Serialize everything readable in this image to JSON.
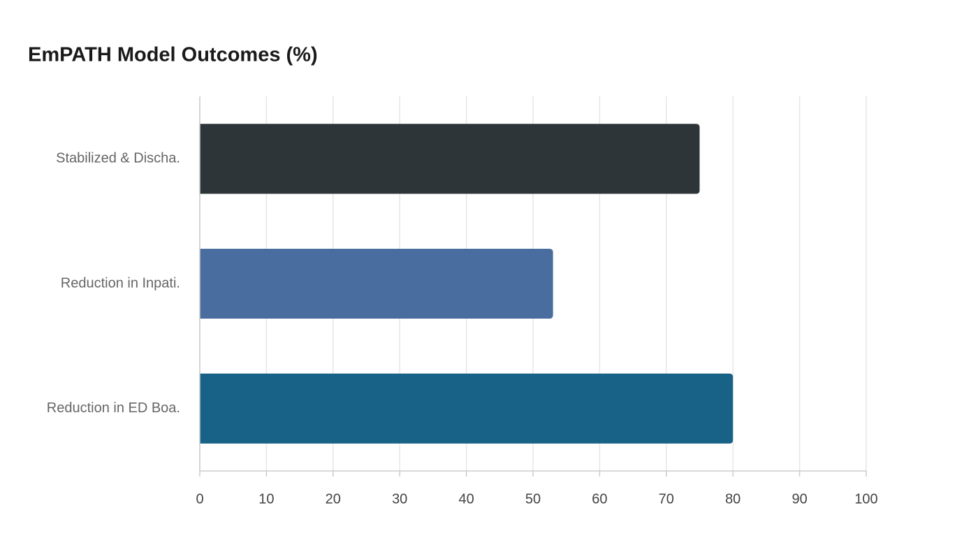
{
  "chart_data": {
    "type": "barh",
    "title": "EmPATH Model Outcomes (%)",
    "categories": [
      "Stabilized & Discha.",
      "Reduction in Inpati.",
      "Reduction in ED Boa."
    ],
    "values": [
      75,
      53,
      80
    ],
    "colors": [
      "#2e3538",
      "#4a6da0",
      "#186187"
    ],
    "xlim": [
      0,
      100
    ],
    "xticks": [
      0,
      10,
      20,
      30,
      40,
      50,
      60,
      70,
      80,
      90,
      100
    ],
    "grid": true
  }
}
